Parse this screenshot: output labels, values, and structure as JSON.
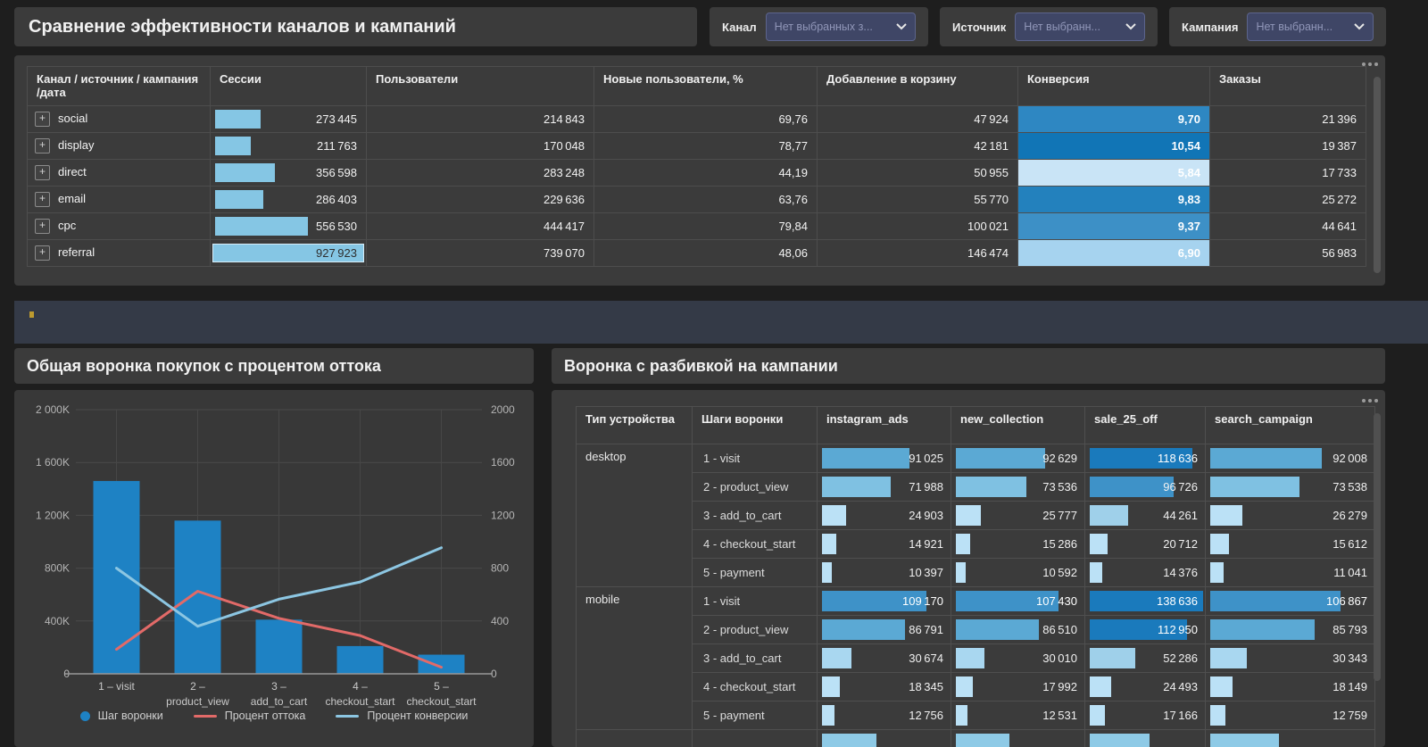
{
  "page": {
    "title": "Сравнение эффективности каналов и кампаний"
  },
  "filters": [
    {
      "label": "Канал",
      "placeholder": "Нет выбранных з..."
    },
    {
      "label": "Источник",
      "placeholder": "Нет выбранн..."
    },
    {
      "label": "Кампания",
      "placeholder": "Нет выбранн..."
    }
  ],
  "main_table": {
    "columns": [
      "Канал / источник / кампания /дата",
      "Сессии",
      "Пользователи",
      "Новые пользователи, %",
      "Добавление в корзину",
      "Конверсия",
      "Заказы"
    ],
    "sessions_max": 927923,
    "bar_color": "#85c6e4",
    "rows": [
      {
        "label": "social",
        "sessions": 273445,
        "users": 214843,
        "new_users_pct": "69,76",
        "add_to_cart": 47924,
        "conversion": "9,70",
        "conversion_color": "#2e87c2",
        "orders": 21396
      },
      {
        "label": "display",
        "sessions": 211763,
        "users": 170048,
        "new_users_pct": "78,77",
        "add_to_cart": 42181,
        "conversion": "10,54",
        "conversion_color": "#1175b6",
        "orders": 19387
      },
      {
        "label": "direct",
        "sessions": 356598,
        "users": 283248,
        "new_users_pct": "44,19",
        "add_to_cart": 50955,
        "conversion": "5,84",
        "conversion_color": "#c9e4f6",
        "orders": 17733
      },
      {
        "label": "email",
        "sessions": 286403,
        "users": 229636,
        "new_users_pct": "63,76",
        "add_to_cart": 55770,
        "conversion": "9,83",
        "conversion_color": "#2381bd",
        "orders": 25272
      },
      {
        "label": "cpc",
        "sessions": 556530,
        "users": 444417,
        "new_users_pct": "79,84",
        "add_to_cart": 100021,
        "conversion": "9,37",
        "conversion_color": "#3d90c6",
        "orders": 44641
      },
      {
        "label": "referral",
        "sessions": 927923,
        "users": 739070,
        "new_users_pct": "48,06",
        "add_to_cart": 146474,
        "conversion": "6,90",
        "conversion_color": "#a6d3ef",
        "orders": 56983
      }
    ]
  },
  "notice_strip": {
    "dot_color": "#bd9a2f"
  },
  "left_chart": {
    "title": "Общая воронка покупок с процентом оттока",
    "chart_data": {
      "type": "combo",
      "categories": [
        "1 – visit",
        "2 – product_view",
        "3 – add_to_cart",
        "4 – checkout_start",
        "5 – checkout_start"
      ],
      "category_labels": [
        [
          "1 – visit",
          ""
        ],
        [
          "2 –",
          "product_view"
        ],
        [
          "3 –",
          "add_to_cart"
        ],
        [
          "4 –",
          "checkout_start"
        ],
        [
          "5 –",
          "checkout_start"
        ]
      ],
      "series": [
        {
          "name": "Шаг воронки",
          "type": "bar",
          "axis": "left",
          "color": "#1e82c4",
          "values": [
            1460000,
            1160000,
            410000,
            210000,
            145000
          ]
        },
        {
          "name": "Процент оттока",
          "type": "line",
          "axis": "right",
          "color": "#e26a68",
          "values": [
            185,
            625,
            420,
            290,
            50
          ]
        },
        {
          "name": "Процент конверсии",
          "type": "line",
          "axis": "right",
          "color": "#8cc6e2",
          "values": [
            800,
            360,
            565,
            695,
            955
          ]
        }
      ],
      "left_axis": {
        "ticks": [
          "2 000K",
          "1 600K",
          "1 200K",
          "800K",
          "400K",
          "0"
        ],
        "max": 2000000
      },
      "right_axis": {
        "ticks": [
          "2000",
          "1600",
          "1200",
          "800",
          "400",
          "0"
        ],
        "max": 2000
      },
      "grid": true,
      "legend_position": "bottom"
    }
  },
  "right_panel": {
    "title": "Воронка с разбивкой на кампании",
    "table": {
      "columns": [
        "Тип устройства",
        "Шаги воронки",
        "instagram_ads",
        "new_collection",
        "sale_25_off",
        "search_campaign"
      ],
      "max_value": 138636,
      "color_scale": [
        {
          "min": 110000,
          "color": "#1a7abc"
        },
        {
          "min": 93000,
          "color": "#3e92c8"
        },
        {
          "min": 80000,
          "color": "#5ba9d4"
        },
        {
          "min": 60000,
          "color": "#7fc1e2"
        },
        {
          "min": 35000,
          "color": "#9fd0ea"
        },
        {
          "min": 28000,
          "color": "#a9d7f0"
        },
        {
          "min": 0,
          "color": "#bbe1f6"
        }
      ],
      "groups": [
        {
          "device": "desktop",
          "steps": [
            {
              "step": "1 - visit",
              "values": [
                91025,
                92629,
                118636,
                92008
              ]
            },
            {
              "step": "2 - product_view",
              "values": [
                71988,
                73536,
                96726,
                73538
              ]
            },
            {
              "step": "3 - add_to_cart",
              "values": [
                24903,
                25777,
                44261,
                26279
              ]
            },
            {
              "step": "4 - checkout_start",
              "values": [
                14921,
                15286,
                20712,
                15612
              ]
            },
            {
              "step": "5 - payment",
              "values": [
                10397,
                10592,
                14376,
                11041
              ]
            }
          ]
        },
        {
          "device": "mobile",
          "steps": [
            {
              "step": "1 - visit",
              "values": [
                109170,
                107430,
                138636,
                106867
              ]
            },
            {
              "step": "2 - product_view",
              "values": [
                86791,
                86510,
                112950,
                85793
              ]
            },
            {
              "step": "3 - add_to_cart",
              "values": [
                30674,
                30010,
                52286,
                30343
              ]
            },
            {
              "step": "4 - checkout_start",
              "values": [
                18345,
                17992,
                24493,
                18149
              ]
            },
            {
              "step": "5 - payment",
              "values": [
                12756,
                12531,
                17166,
                12759
              ]
            }
          ]
        }
      ],
      "partial_row": {
        "color": "#8ecae6",
        "bar_pcts": [
          0.41,
          0.4,
          0.5,
          0.41
        ]
      }
    }
  }
}
